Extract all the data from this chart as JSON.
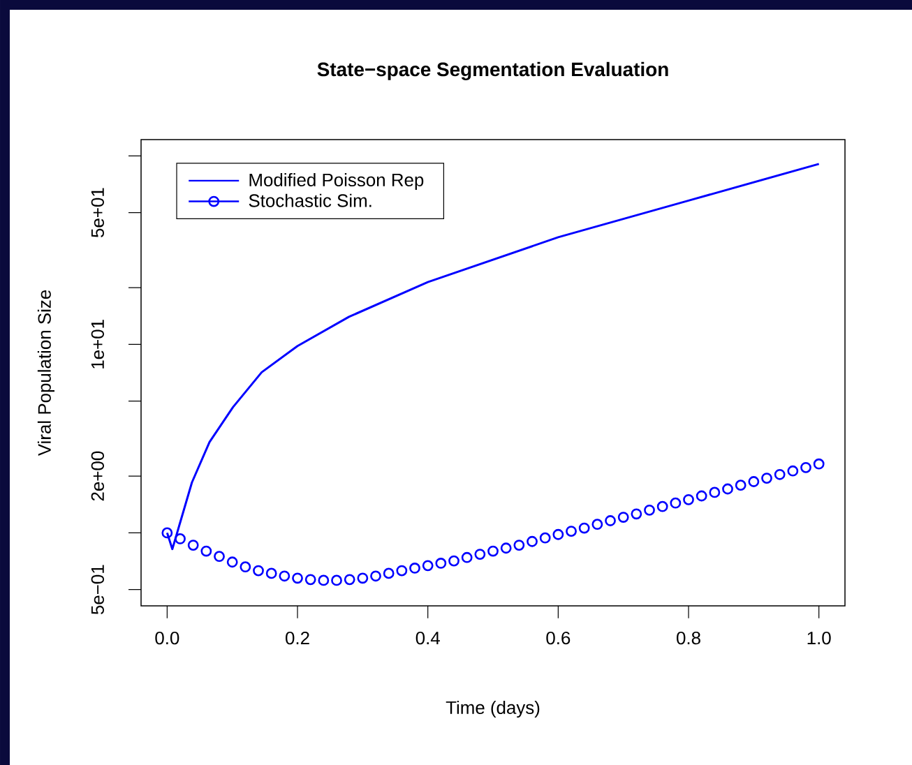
{
  "chart_data": {
    "type": "line",
    "title": "State−space Segmentation Evaluation",
    "xlabel": "Time (days)",
    "ylabel": "Viral Population Size",
    "log": "y",
    "legend": "top left",
    "xlim": [
      -0.04,
      1.04
    ],
    "ylim": [
      0.41,
      122
    ],
    "xticks": [
      {
        "value": 0,
        "label": "0.0"
      },
      {
        "value": 0.2,
        "label": "0.2"
      },
      {
        "value": 0.4,
        "label": "0.4"
      },
      {
        "value": 0.6,
        "label": "0.6"
      },
      {
        "value": 0.8,
        "label": "0.8"
      },
      {
        "value": 1,
        "label": "1.0"
      }
    ],
    "yticks": [
      {
        "value": 0.5,
        "label": "5e−01"
      },
      {
        "value": 1,
        "label": null
      },
      {
        "value": 2,
        "label": "2e+00"
      },
      {
        "value": 5,
        "label": null
      },
      {
        "value": 10,
        "label": "1e+01"
      },
      {
        "value": 20,
        "label": null
      },
      {
        "value": 50,
        "label": "5e+01"
      },
      {
        "value": 100,
        "label": null
      }
    ],
    "series": [
      {
        "name": "Modified Poisson Rep",
        "color": "#0000ff",
        "marker": "none",
        "line_style": "solid",
        "x": [
          0,
          0.008,
          0.038,
          0.065,
          0.101,
          0.145,
          0.2,
          0.279,
          0.4,
          0.6,
          0.8,
          1.0
        ],
        "values": [
          1.0,
          0.82,
          1.85,
          3.03,
          4.64,
          7.11,
          9.8,
          14.0,
          21.4,
          37.0,
          57.9,
          90.6
        ]
      },
      {
        "name": "Stochastic Sim.",
        "type": "scatter",
        "color": "#0000ff",
        "marker": "circle",
        "x": [
          0,
          0.02,
          0.04,
          0.06,
          0.08,
          0.1,
          0.12,
          0.14,
          0.16,
          0.18,
          0.2,
          0.22,
          0.24,
          0.26,
          0.28,
          0.3,
          0.32,
          0.34,
          0.36,
          0.38,
          0.4,
          0.42,
          0.44,
          0.46,
          0.48,
          0.5,
          0.52,
          0.54,
          0.56,
          0.58,
          0.6,
          0.62,
          0.64,
          0.66,
          0.68,
          0.7,
          0.72,
          0.74,
          0.76,
          0.78,
          0.8,
          0.82,
          0.84,
          0.86,
          0.88,
          0.9,
          0.92,
          0.94,
          0.96,
          0.98,
          1.0
        ],
        "values": [
          1.0,
          0.93,
          0.86,
          0.8,
          0.75,
          0.7,
          0.66,
          0.63,
          0.61,
          0.59,
          0.575,
          0.565,
          0.56,
          0.56,
          0.565,
          0.575,
          0.59,
          0.61,
          0.63,
          0.65,
          0.67,
          0.69,
          0.71,
          0.74,
          0.77,
          0.8,
          0.83,
          0.86,
          0.9,
          0.94,
          0.98,
          1.02,
          1.06,
          1.11,
          1.16,
          1.21,
          1.26,
          1.32,
          1.38,
          1.44,
          1.5,
          1.57,
          1.64,
          1.71,
          1.79,
          1.87,
          1.95,
          2.04,
          2.13,
          2.22,
          2.32
        ]
      }
    ]
  }
}
